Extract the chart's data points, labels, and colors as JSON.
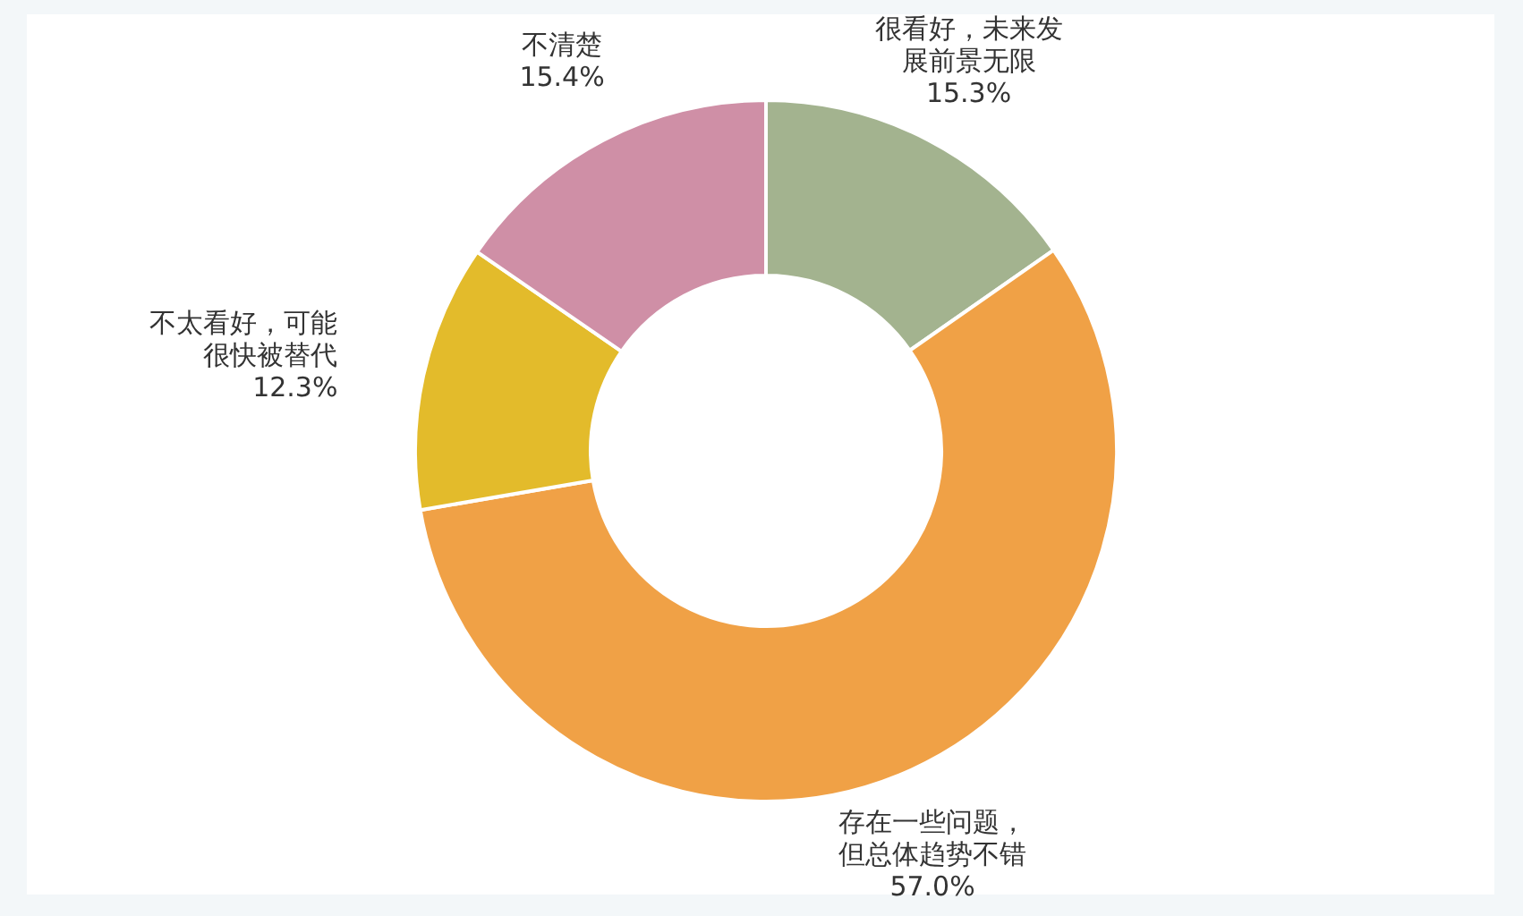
{
  "chart_data": {
    "type": "donut",
    "categories": [
      "很看好，未来发展前景无限",
      "存在一些问题，但总体趋势不错",
      "不太看好，可能很快被替代",
      "不清楚"
    ],
    "values": [
      15.3,
      57.0,
      12.3,
      15.4
    ],
    "colors": [
      "#a3b38f",
      "#f0a146",
      "#e3bb2b",
      "#cf8fa6"
    ],
    "value_labels": [
      "15.3%",
      "57.0%",
      "12.3%",
      "15.4%"
    ]
  }
}
